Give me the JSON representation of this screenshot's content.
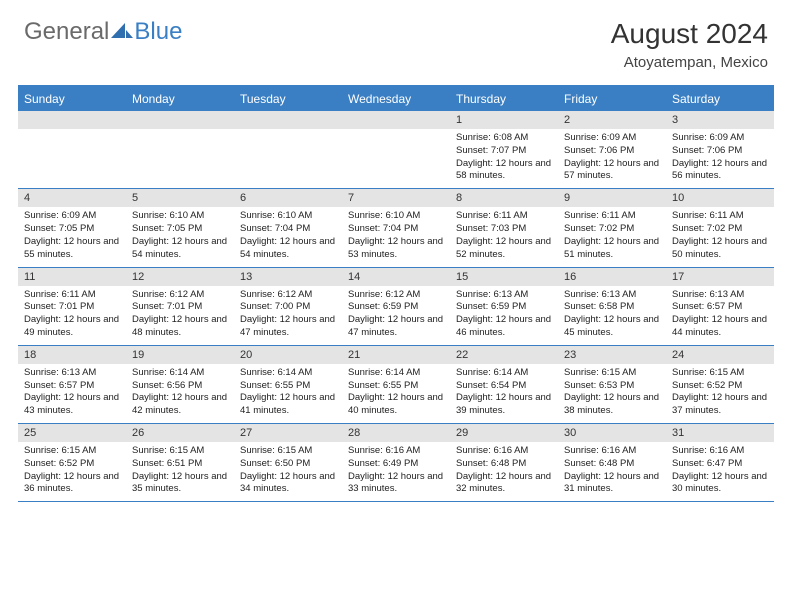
{
  "brand": {
    "general": "General",
    "blue": "Blue"
  },
  "header": {
    "title": "August 2024",
    "location": "Atoyatempan, Mexico"
  },
  "colors": {
    "accent": "#3a7fc4",
    "header_band": "#e4e4e4",
    "background": "#ffffff",
    "text": "#222222",
    "logo_gray": "#6a6a6a"
  },
  "calendar": {
    "dow": [
      "Sunday",
      "Monday",
      "Tuesday",
      "Wednesday",
      "Thursday",
      "Friday",
      "Saturday"
    ],
    "first_weekday_index": 4,
    "days": [
      {
        "n": 1,
        "sunrise": "6:08 AM",
        "sunset": "7:07 PM",
        "daylight": "12 hours and 58 minutes."
      },
      {
        "n": 2,
        "sunrise": "6:09 AM",
        "sunset": "7:06 PM",
        "daylight": "12 hours and 57 minutes."
      },
      {
        "n": 3,
        "sunrise": "6:09 AM",
        "sunset": "7:06 PM",
        "daylight": "12 hours and 56 minutes."
      },
      {
        "n": 4,
        "sunrise": "6:09 AM",
        "sunset": "7:05 PM",
        "daylight": "12 hours and 55 minutes."
      },
      {
        "n": 5,
        "sunrise": "6:10 AM",
        "sunset": "7:05 PM",
        "daylight": "12 hours and 54 minutes."
      },
      {
        "n": 6,
        "sunrise": "6:10 AM",
        "sunset": "7:04 PM",
        "daylight": "12 hours and 54 minutes."
      },
      {
        "n": 7,
        "sunrise": "6:10 AM",
        "sunset": "7:04 PM",
        "daylight": "12 hours and 53 minutes."
      },
      {
        "n": 8,
        "sunrise": "6:11 AM",
        "sunset": "7:03 PM",
        "daylight": "12 hours and 52 minutes."
      },
      {
        "n": 9,
        "sunrise": "6:11 AM",
        "sunset": "7:02 PM",
        "daylight": "12 hours and 51 minutes."
      },
      {
        "n": 10,
        "sunrise": "6:11 AM",
        "sunset": "7:02 PM",
        "daylight": "12 hours and 50 minutes."
      },
      {
        "n": 11,
        "sunrise": "6:11 AM",
        "sunset": "7:01 PM",
        "daylight": "12 hours and 49 minutes."
      },
      {
        "n": 12,
        "sunrise": "6:12 AM",
        "sunset": "7:01 PM",
        "daylight": "12 hours and 48 minutes."
      },
      {
        "n": 13,
        "sunrise": "6:12 AM",
        "sunset": "7:00 PM",
        "daylight": "12 hours and 47 minutes."
      },
      {
        "n": 14,
        "sunrise": "6:12 AM",
        "sunset": "6:59 PM",
        "daylight": "12 hours and 47 minutes."
      },
      {
        "n": 15,
        "sunrise": "6:13 AM",
        "sunset": "6:59 PM",
        "daylight": "12 hours and 46 minutes."
      },
      {
        "n": 16,
        "sunrise": "6:13 AM",
        "sunset": "6:58 PM",
        "daylight": "12 hours and 45 minutes."
      },
      {
        "n": 17,
        "sunrise": "6:13 AM",
        "sunset": "6:57 PM",
        "daylight": "12 hours and 44 minutes."
      },
      {
        "n": 18,
        "sunrise": "6:13 AM",
        "sunset": "6:57 PM",
        "daylight": "12 hours and 43 minutes."
      },
      {
        "n": 19,
        "sunrise": "6:14 AM",
        "sunset": "6:56 PM",
        "daylight": "12 hours and 42 minutes."
      },
      {
        "n": 20,
        "sunrise": "6:14 AM",
        "sunset": "6:55 PM",
        "daylight": "12 hours and 41 minutes."
      },
      {
        "n": 21,
        "sunrise": "6:14 AM",
        "sunset": "6:55 PM",
        "daylight": "12 hours and 40 minutes."
      },
      {
        "n": 22,
        "sunrise": "6:14 AM",
        "sunset": "6:54 PM",
        "daylight": "12 hours and 39 minutes."
      },
      {
        "n": 23,
        "sunrise": "6:15 AM",
        "sunset": "6:53 PM",
        "daylight": "12 hours and 38 minutes."
      },
      {
        "n": 24,
        "sunrise": "6:15 AM",
        "sunset": "6:52 PM",
        "daylight": "12 hours and 37 minutes."
      },
      {
        "n": 25,
        "sunrise": "6:15 AM",
        "sunset": "6:52 PM",
        "daylight": "12 hours and 36 minutes."
      },
      {
        "n": 26,
        "sunrise": "6:15 AM",
        "sunset": "6:51 PM",
        "daylight": "12 hours and 35 minutes."
      },
      {
        "n": 27,
        "sunrise": "6:15 AM",
        "sunset": "6:50 PM",
        "daylight": "12 hours and 34 minutes."
      },
      {
        "n": 28,
        "sunrise": "6:16 AM",
        "sunset": "6:49 PM",
        "daylight": "12 hours and 33 minutes."
      },
      {
        "n": 29,
        "sunrise": "6:16 AM",
        "sunset": "6:48 PM",
        "daylight": "12 hours and 32 minutes."
      },
      {
        "n": 30,
        "sunrise": "6:16 AM",
        "sunset": "6:48 PM",
        "daylight": "12 hours and 31 minutes."
      },
      {
        "n": 31,
        "sunrise": "6:16 AM",
        "sunset": "6:47 PM",
        "daylight": "12 hours and 30 minutes."
      }
    ],
    "labels": {
      "sunrise": "Sunrise:",
      "sunset": "Sunset:",
      "daylight": "Daylight:"
    }
  }
}
